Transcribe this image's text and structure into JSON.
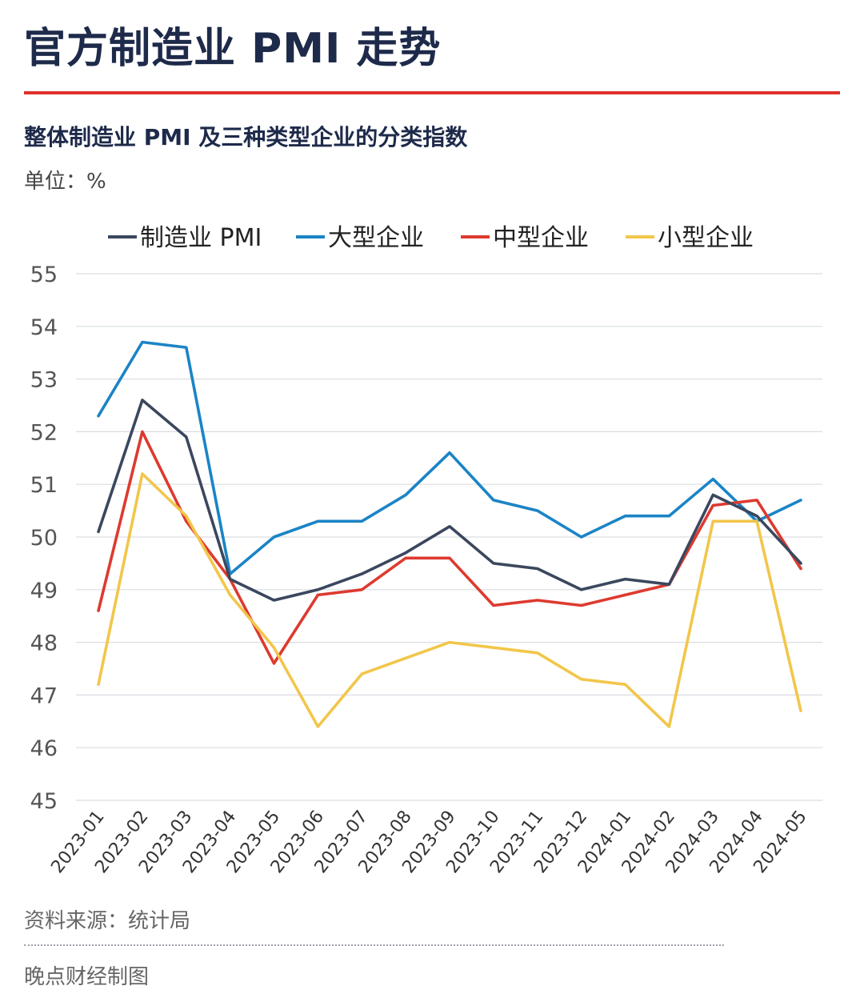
{
  "header": {
    "title": "官方制造业 PMI 走势",
    "subtitle": "整体制造业 PMI 及三种类型企业的分类指数",
    "unit": "单位：%"
  },
  "footer": {
    "source": "资料来源：统计局",
    "credit": "晚点财经制图"
  },
  "chart_data": {
    "type": "line",
    "x": [
      "2023-01",
      "2023-02",
      "2023-03",
      "2023-04",
      "2023-05",
      "2023-06",
      "2023-07",
      "2023-08",
      "2023-09",
      "2023-10",
      "2023-11",
      "2023-12",
      "2024-01",
      "2024-02",
      "2024-03",
      "2024-04",
      "2024-05"
    ],
    "series": [
      {
        "name": "制造业 PMI",
        "color": "#3b475e",
        "values": [
          50.1,
          52.6,
          51.9,
          49.2,
          48.8,
          49.0,
          49.3,
          49.7,
          50.2,
          49.5,
          49.4,
          49.0,
          49.2,
          49.1,
          50.8,
          50.4,
          49.5
        ]
      },
      {
        "name": "大型企业",
        "color": "#1b84c6",
        "values": [
          52.3,
          53.7,
          53.6,
          49.3,
          50.0,
          50.3,
          50.3,
          50.8,
          51.6,
          50.7,
          50.5,
          50.0,
          50.4,
          50.4,
          51.1,
          50.3,
          50.7
        ]
      },
      {
        "name": "中型企业",
        "color": "#dd3a2f",
        "values": [
          48.6,
          52.0,
          50.3,
          49.2,
          47.6,
          48.9,
          49.0,
          49.6,
          49.6,
          48.7,
          48.8,
          48.7,
          48.9,
          49.1,
          50.6,
          50.7,
          49.4
        ]
      },
      {
        "name": "小型企业",
        "color": "#f2c64b",
        "values": [
          47.2,
          51.2,
          50.4,
          48.9,
          47.9,
          46.4,
          47.4,
          47.7,
          48.0,
          47.9,
          47.8,
          47.3,
          47.2,
          46.4,
          50.3,
          50.3,
          46.7
        ]
      }
    ],
    "ylim": [
      45,
      55
    ],
    "yticks": [
      45,
      46,
      47,
      48,
      49,
      50,
      51,
      52,
      53,
      54,
      55
    ],
    "grid": true,
    "legend": "top"
  }
}
